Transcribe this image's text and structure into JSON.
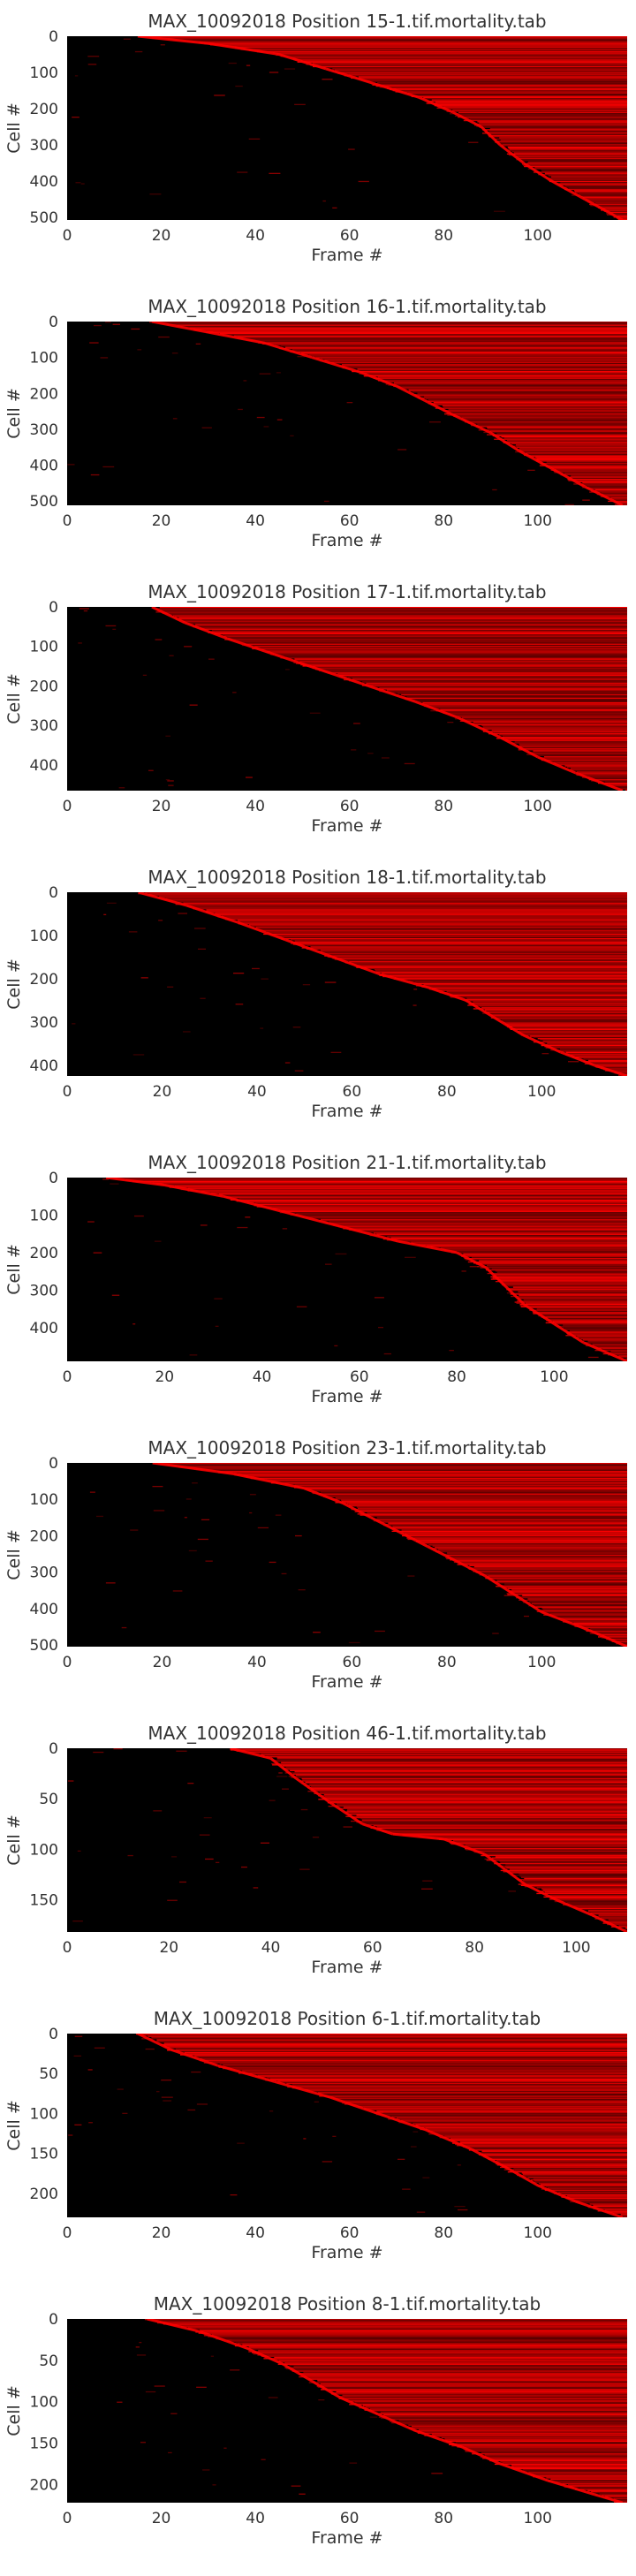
{
  "figure": {
    "background": "#ffffff",
    "text_color": "#333333",
    "cmap": [
      "#000000",
      "#ff0000"
    ]
  },
  "chart_data": [
    {
      "type": "heatmap",
      "title": "MAX_10092018 Position 15-1.tif.mortality.tab",
      "xlabel": "Frame #",
      "ylabel": "Cell #",
      "xlim": [
        0,
        119
      ],
      "ylim": [
        507,
        0
      ],
      "xticks": [
        0,
        20,
        40,
        60,
        80,
        100
      ],
      "yticks": [
        0,
        100,
        200,
        300,
        400,
        500
      ],
      "death_curve": [
        [
          15,
          0
        ],
        [
          30,
          20
        ],
        [
          45,
          50
        ],
        [
          55,
          90
        ],
        [
          65,
          130
        ],
        [
          75,
          170
        ],
        [
          82,
          210
        ],
        [
          88,
          250
        ],
        [
          92,
          300
        ],
        [
          97,
          350
        ],
        [
          103,
          400
        ],
        [
          110,
          450
        ],
        [
          118,
          507
        ]
      ]
    },
    {
      "type": "heatmap",
      "title": "MAX_10092018 Position 16-1.tif.mortality.tab",
      "xlabel": "Frame #",
      "ylabel": "Cell #",
      "xlim": [
        0,
        119
      ],
      "ylim": [
        512,
        0
      ],
      "xticks": [
        0,
        20,
        40,
        60,
        80,
        100
      ],
      "yticks": [
        0,
        100,
        200,
        300,
        400,
        500
      ],
      "death_curve": [
        [
          18,
          0
        ],
        [
          30,
          30
        ],
        [
          42,
          60
        ],
        [
          52,
          100
        ],
        [
          62,
          140
        ],
        [
          70,
          180
        ],
        [
          76,
          220
        ],
        [
          82,
          260
        ],
        [
          90,
          310
        ],
        [
          96,
          360
        ],
        [
          103,
          410
        ],
        [
          110,
          460
        ],
        [
          118,
          512
        ]
      ]
    },
    {
      "type": "heatmap",
      "title": "MAX_10092018 Position 17-1.tif.mortality.tab",
      "xlabel": "Frame #",
      "ylabel": "Cell #",
      "xlim": [
        0,
        119
      ],
      "ylim": [
        465,
        0
      ],
      "xticks": [
        0,
        20,
        40,
        60,
        80,
        100
      ],
      "yticks": [
        0,
        100,
        200,
        300,
        400
      ],
      "death_curve": [
        [
          18,
          0
        ],
        [
          25,
          40
        ],
        [
          34,
          80
        ],
        [
          44,
          120
        ],
        [
          54,
          160
        ],
        [
          64,
          200
        ],
        [
          74,
          240
        ],
        [
          83,
          280
        ],
        [
          92,
          330
        ],
        [
          100,
          380
        ],
        [
          108,
          420
        ],
        [
          118,
          465
        ]
      ]
    },
    {
      "type": "heatmap",
      "title": "MAX_10092018 Position 18-1.tif.mortality.tab",
      "xlabel": "Frame #",
      "ylabel": "Cell #",
      "xlim": [
        0,
        118
      ],
      "ylim": [
        425,
        0
      ],
      "xticks": [
        0,
        20,
        40,
        60,
        80,
        100
      ],
      "yticks": [
        0,
        100,
        200,
        300,
        400
      ],
      "death_curve": [
        [
          15,
          0
        ],
        [
          25,
          30
        ],
        [
          36,
          70
        ],
        [
          46,
          110
        ],
        [
          56,
          150
        ],
        [
          66,
          190
        ],
        [
          76,
          220
        ],
        [
          84,
          250
        ],
        [
          90,
          290
        ],
        [
          96,
          330
        ],
        [
          104,
          370
        ],
        [
          111,
          400
        ],
        [
          118,
          425
        ]
      ]
    },
    {
      "type": "heatmap",
      "title": "MAX_10092018 Position 21-1.tif.mortality.tab",
      "xlabel": "Frame #",
      "ylabel": "Cell #",
      "xlim": [
        0,
        115
      ],
      "ylim": [
        490,
        0
      ],
      "xticks": [
        0,
        20,
        40,
        60,
        80,
        100
      ],
      "yticks": [
        0,
        100,
        200,
        300,
        400
      ],
      "death_curve": [
        [
          8,
          0
        ],
        [
          20,
          20
        ],
        [
          32,
          50
        ],
        [
          44,
          90
        ],
        [
          56,
          130
        ],
        [
          68,
          170
        ],
        [
          80,
          200
        ],
        [
          86,
          240
        ],
        [
          90,
          290
        ],
        [
          94,
          340
        ],
        [
          100,
          390
        ],
        [
          106,
          440
        ],
        [
          115,
          490
        ]
      ]
    },
    {
      "type": "heatmap",
      "title": "MAX_10092018 Position 23-1.tif.mortality.tab",
      "xlabel": "Frame #",
      "ylabel": "Cell #",
      "xlim": [
        0,
        118
      ],
      "ylim": [
        505,
        0
      ],
      "xticks": [
        0,
        20,
        40,
        60,
        80,
        100
      ],
      "yticks": [
        0,
        100,
        200,
        300,
        400,
        500
      ],
      "death_curve": [
        [
          18,
          0
        ],
        [
          35,
          30
        ],
        [
          50,
          70
        ],
        [
          58,
          110
        ],
        [
          64,
          150
        ],
        [
          70,
          190
        ],
        [
          76,
          230
        ],
        [
          82,
          270
        ],
        [
          88,
          310
        ],
        [
          94,
          360
        ],
        [
          100,
          410
        ],
        [
          110,
          460
        ],
        [
          118,
          505
        ]
      ]
    },
    {
      "type": "heatmap",
      "title": "MAX_10092018 Position 46-1.tif.mortality.tab",
      "xlabel": "Frame #",
      "ylabel": "Cell #",
      "xlim": [
        0,
        110
      ],
      "ylim": [
        182,
        0
      ],
      "xticks": [
        0,
        20,
        40,
        60,
        80,
        100
      ],
      "yticks": [
        0,
        50,
        100,
        150
      ],
      "death_curve": [
        [
          32,
          0
        ],
        [
          40,
          10
        ],
        [
          45,
          30
        ],
        [
          52,
          55
        ],
        [
          58,
          75
        ],
        [
          64,
          85
        ],
        [
          74,
          90
        ],
        [
          82,
          105
        ],
        [
          86,
          120
        ],
        [
          90,
          135
        ],
        [
          96,
          150
        ],
        [
          103,
          165
        ],
        [
          110,
          182
        ]
      ]
    },
    {
      "type": "heatmap",
      "title": "MAX_10092018 Position 6-1.tif.mortality.tab",
      "xlabel": "Frame #",
      "ylabel": "Cell #",
      "xlim": [
        0,
        119
      ],
      "ylim": [
        230,
        0
      ],
      "xticks": [
        0,
        20,
        40,
        60,
        80,
        100
      ],
      "yticks": [
        0,
        50,
        100,
        150,
        200
      ],
      "death_curve": [
        [
          15,
          0
        ],
        [
          22,
          20
        ],
        [
          32,
          40
        ],
        [
          44,
          60
        ],
        [
          56,
          80
        ],
        [
          66,
          100
        ],
        [
          76,
          120
        ],
        [
          86,
          145
        ],
        [
          94,
          170
        ],
        [
          100,
          190
        ],
        [
          108,
          210
        ],
        [
          118,
          230
        ]
      ]
    },
    {
      "type": "heatmap",
      "title": "MAX_10092018 Position 8-1.tif.mortality.tab",
      "xlabel": "Frame #",
      "ylabel": "Cell #",
      "xlim": [
        0,
        119
      ],
      "ylim": [
        222,
        0
      ],
      "xticks": [
        0,
        20,
        40,
        60,
        80,
        100
      ],
      "yticks": [
        0,
        50,
        100,
        150,
        200
      ],
      "death_curve": [
        [
          17,
          0
        ],
        [
          28,
          15
        ],
        [
          38,
          35
        ],
        [
          46,
          55
        ],
        [
          52,
          75
        ],
        [
          58,
          95
        ],
        [
          66,
          115
        ],
        [
          74,
          135
        ],
        [
          84,
          155
        ],
        [
          92,
          175
        ],
        [
          102,
          195
        ],
        [
          112,
          212
        ],
        [
          118,
          222
        ]
      ]
    }
  ]
}
